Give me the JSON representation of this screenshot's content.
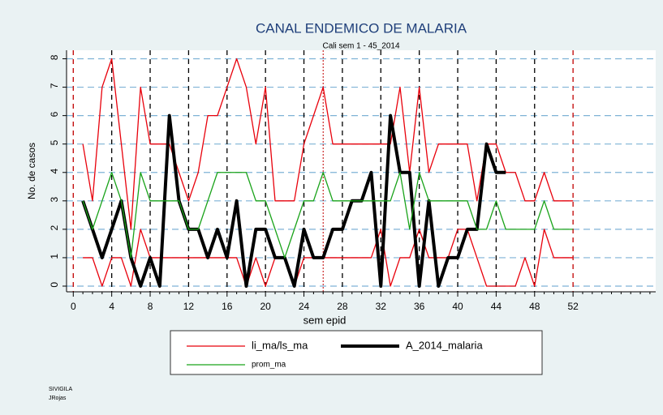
{
  "chart_data": {
    "type": "line",
    "title": "CANAL ENDEMICO DE MALARIA",
    "subtitle": "Cali sem 1 - 45_2014",
    "ylabel": "No. de casos",
    "xlabel": "sem epid",
    "footer": [
      "SIVIGILA",
      "JRojas"
    ],
    "x": [
      1,
      2,
      3,
      4,
      5,
      6,
      7,
      8,
      9,
      10,
      11,
      12,
      13,
      14,
      15,
      16,
      17,
      18,
      19,
      20,
      21,
      22,
      23,
      24,
      25,
      26,
      27,
      28,
      29,
      30,
      31,
      32,
      33,
      34,
      35,
      36,
      37,
      38,
      39,
      40,
      41,
      42,
      43,
      44,
      45,
      46,
      47,
      48,
      49,
      50,
      51,
      52
    ],
    "xlim": [
      -0.7,
      60.6
    ],
    "xticks": [
      0,
      4,
      8,
      12,
      16,
      20,
      24,
      28,
      32,
      36,
      40,
      44,
      48,
      52
    ],
    "xminorticks": [
      1,
      2,
      3,
      5,
      6,
      7,
      9,
      10,
      11,
      13,
      14,
      15,
      17,
      18,
      19,
      21,
      22,
      23,
      25,
      26,
      27,
      29,
      30,
      31,
      33,
      34,
      35,
      37,
      38,
      39,
      41,
      42,
      43,
      45,
      46,
      47,
      49,
      50,
      51,
      53,
      54,
      55,
      56,
      57,
      58,
      59,
      60
    ],
    "ylim": [
      -0.2,
      8.3
    ],
    "yticks": [
      0,
      1,
      2,
      3,
      4,
      5,
      6,
      7,
      8
    ],
    "grid": true,
    "grid_color": "#7fb2d6",
    "vlines": [
      {
        "x": 0,
        "color": "#c00000",
        "style": "dash"
      },
      {
        "x": 4,
        "color": "#000000",
        "style": "dash"
      },
      {
        "x": 8,
        "color": "#000000",
        "style": "dash"
      },
      {
        "x": 12,
        "color": "#000000",
        "style": "dash"
      },
      {
        "x": 16,
        "color": "#000000",
        "style": "dash"
      },
      {
        "x": 20,
        "color": "#000000",
        "style": "dash"
      },
      {
        "x": 24,
        "color": "#000000",
        "style": "dash"
      },
      {
        "x": 26,
        "color": "#c00000",
        "style": "dot"
      },
      {
        "x": 28,
        "color": "#000000",
        "style": "dash"
      },
      {
        "x": 32,
        "color": "#000000",
        "style": "dash"
      },
      {
        "x": 36,
        "color": "#000000",
        "style": "dash"
      },
      {
        "x": 40,
        "color": "#000000",
        "style": "dash"
      },
      {
        "x": 44,
        "color": "#000000",
        "style": "dash"
      },
      {
        "x": 48,
        "color": "#000000",
        "style": "dash"
      },
      {
        "x": 52,
        "color": "#c00000",
        "style": "dash"
      }
    ],
    "series": [
      {
        "name": "li_ma/ls_ma",
        "color": "#e8000b",
        "width": 1.3,
        "values": [
          5,
          3,
          7,
          8,
          5,
          2,
          7,
          5,
          5,
          5,
          4,
          3,
          4,
          6,
          6,
          7,
          8,
          7,
          5,
          7,
          3,
          3,
          3,
          5,
          6,
          7,
          5,
          5,
          5,
          5,
          5,
          5,
          5,
          7,
          4,
          7,
          4,
          5,
          5,
          5,
          5,
          3,
          5,
          5,
          4,
          4,
          3,
          3,
          4,
          3,
          3,
          3
        ]
      },
      {
        "color": "#e8000b",
        "width": 1.3,
        "values": [
          1,
          1,
          0,
          1,
          1,
          0,
          2,
          1,
          1,
          1,
          1,
          1,
          1,
          1,
          1,
          1,
          1,
          0,
          1,
          0,
          1,
          1,
          0,
          1,
          1,
          1,
          1,
          1,
          1,
          1,
          1,
          2,
          0,
          1,
          1,
          2,
          1,
          1,
          1,
          2,
          2,
          1,
          0,
          0,
          0,
          0,
          1,
          0,
          2,
          1,
          1,
          1
        ]
      },
      {
        "name": "A_2014_malaria",
        "color": "#000000",
        "width": 4,
        "values": [
          3,
          2,
          1,
          2,
          3,
          1,
          0,
          1,
          0,
          6,
          3,
          2,
          2,
          1,
          2,
          1,
          3,
          0,
          2,
          2,
          1,
          1,
          0,
          2,
          1,
          1,
          2,
          2,
          3,
          3,
          4,
          0,
          6,
          4,
          4,
          0,
          3,
          0,
          1,
          1,
          2,
          2,
          5,
          4,
          4,
          null,
          null,
          null,
          null,
          null,
          null,
          null
        ]
      },
      {
        "name": "prom_ma",
        "color": "#1aa31a",
        "width": 1.3,
        "values": [
          3,
          2,
          3,
          4,
          3,
          1,
          4,
          3,
          3,
          3,
          3,
          2,
          2,
          3,
          4,
          4,
          4,
          4,
          3,
          3,
          2,
          1,
          2,
          3,
          3,
          4,
          3,
          3,
          3,
          3,
          3,
          3,
          3,
          4,
          2,
          4,
          3,
          3,
          3,
          3,
          3,
          2,
          2,
          3,
          2,
          2,
          2,
          2,
          3,
          2,
          2,
          2
        ]
      }
    ]
  }
}
